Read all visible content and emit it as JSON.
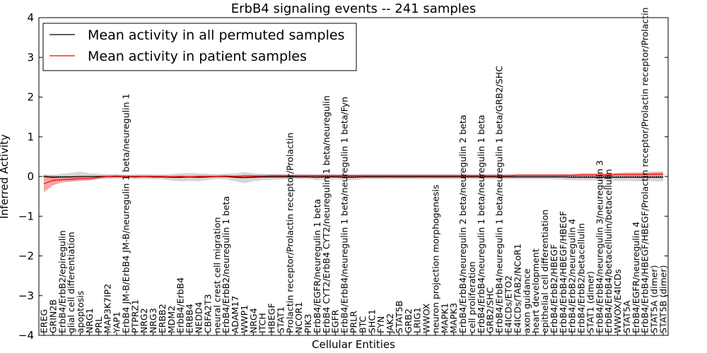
{
  "chart_data": {
    "type": "line",
    "title": "ErbB4 signaling events -- 241 samples",
    "xlabel": "Cellular Entities",
    "ylabel": "Inferred Activity",
    "ylim": [
      -4,
      4
    ],
    "yticks": [
      -4,
      -3,
      -2,
      -1,
      0,
      1,
      2,
      3,
      4
    ],
    "legend_position": "top-left",
    "categories": [
      "EREG",
      "GRIN2B",
      "ErbB4/ErbB2/epiregulin",
      "glial cell differentiation",
      "apoptosis",
      "NRG1",
      "PRL",
      "MAP3K7IP2",
      "YAP1",
      "ErbB4 JM-B/ErbB4 JM-B/neuregulin 1 beta/neuregulin 1",
      "PTPRZ1",
      "NRG2",
      "NRG3",
      "ERBB2",
      "MDM2",
      "ErbB4/ErbB4",
      "ERBB4",
      "NEDD4",
      "CBFA2T3",
      "neural crest cell migration",
      "ErbB4/ErbB2/neuregulin 1 beta",
      "ADAM17",
      "WWP1",
      "NRG4",
      "ITCH",
      "HBEGF",
      "STAT1",
      "Prolactin receptor/Prolactin receptor/Prolactin",
      "NCOR1",
      "PIK3",
      "ErbB4/EGFR/neuregulin 1 beta",
      "ErbB4 CYT2/ErbB4 CYT2/neuregulin 1 beta/neuregulin",
      "EGFR",
      "ErbB4/ErbB4/neuregulin 1 beta/neuregulin 1 beta/Fyn",
      "PRLR",
      "BTC",
      "SHC1",
      "FYN",
      "JAK2",
      "STAT5B",
      "GRB2",
      "LRIG1",
      "WWOX",
      "neuron projection morphogenesis",
      "MAPK1",
      "MAPK3",
      "ErbB4/ErbB4/neuregulin 2 beta/neuregulin 2 beta",
      "cell proliferation",
      "ErbB4/ErbB4/neuregulin 1 beta/neuregulin 1 beta",
      "GRB2/SHC",
      "ErbB4/ErbB4/neuregulin 1 beta/neuregulin 1 beta/GRB2/SHC",
      "E4ICDs/ETO2",
      "E4ICDs/TAB2/NCoR1",
      "axon guidance",
      "heart development",
      "epithelial cell differentiation",
      "ErbB4/ErbB2/HBEGF",
      "ErbB4/ErbB4/HBEGF/HBEGF",
      "ErbB4/ErbB2/neuregulin 4",
      "ErbB4/ErbB2/betacellulin",
      "STAT1 (dimer)",
      "ErbB4/ErbB4/neuregulin 3/neuregulin 3",
      "ErbB4/ErbB4/betacellulin/betacellulin",
      "WWOX/E4ICDs",
      "STAT5A",
      "ErbB4/EGFR/neuregulin 4",
      "ErbB4/ErbB4/HBEGF/HBEGF/Prolactin receptor/Prolactin receptor/Prolactin",
      "STAT5A (dimer)",
      "STAT5B (dimer)"
    ],
    "series": [
      {
        "name": "Mean activity in all permuted samples",
        "color": "#000000",
        "band_color": "#c8c8c8",
        "values": [
          0.0,
          -0.02,
          -0.01,
          -0.01,
          0.0,
          0.0,
          0.0,
          0.0,
          0.0,
          0.0,
          -0.01,
          0.0,
          -0.01,
          -0.01,
          -0.02,
          -0.02,
          -0.01,
          -0.02,
          -0.01,
          0.0,
          0.0,
          -0.02,
          -0.03,
          -0.02,
          -0.01,
          -0.01,
          -0.01,
          -0.01,
          -0.01,
          -0.01,
          -0.02,
          -0.01,
          -0.01,
          -0.02,
          -0.02,
          -0.01,
          -0.01,
          -0.01,
          -0.01,
          -0.01,
          -0.01,
          -0.01,
          -0.01,
          -0.01,
          -0.01,
          -0.01,
          -0.01,
          -0.01,
          -0.01,
          -0.01,
          -0.01,
          -0.01,
          -0.01,
          -0.01,
          -0.01,
          -0.01,
          -0.01,
          -0.01,
          -0.02,
          -0.02,
          -0.02,
          -0.02,
          -0.02,
          -0.02,
          -0.02,
          -0.02,
          -0.02,
          -0.02,
          -0.02
        ],
        "band_width": [
          0.05,
          0.06,
          0.08,
          0.1,
          0.12,
          0.08,
          0.07,
          0.06,
          0.06,
          0.05,
          0.06,
          0.06,
          0.06,
          0.06,
          0.08,
          0.1,
          0.1,
          0.1,
          0.08,
          0.06,
          0.07,
          0.1,
          0.14,
          0.1,
          0.08,
          0.07,
          0.07,
          0.06,
          0.06,
          0.06,
          0.07,
          0.07,
          0.06,
          0.07,
          0.07,
          0.06,
          0.06,
          0.06,
          0.06,
          0.06,
          0.06,
          0.06,
          0.06,
          0.06,
          0.06,
          0.06,
          0.06,
          0.06,
          0.06,
          0.06,
          0.06,
          0.06,
          0.06,
          0.06,
          0.06,
          0.06,
          0.06,
          0.07,
          0.07,
          0.08,
          0.08,
          0.08,
          0.08,
          0.09,
          0.09,
          0.1,
          0.1,
          0.1,
          0.1
        ]
      },
      {
        "name": "Mean activity in patient samples",
        "color": "#ff0000",
        "band_color": "#f08080",
        "values": [
          -0.18,
          -0.1,
          -0.08,
          -0.07,
          -0.05,
          -0.05,
          -0.02,
          0.0,
          0.01,
          0.0,
          0.0,
          0.0,
          0.0,
          0.0,
          -0.01,
          0.0,
          -0.01,
          0.0,
          0.0,
          0.0,
          0.01,
          0.0,
          0.01,
          0.01,
          0.01,
          0.02,
          0.02,
          0.02,
          0.02,
          0.02,
          0.02,
          0.02,
          0.02,
          0.02,
          0.02,
          0.02,
          0.02,
          0.02,
          0.02,
          0.02,
          0.02,
          0.02,
          0.02,
          0.02,
          0.02,
          0.02,
          0.02,
          0.02,
          0.02,
          0.02,
          0.02,
          0.02,
          0.03,
          0.03,
          0.03,
          0.03,
          0.03,
          0.03,
          0.03,
          0.04,
          0.04,
          0.04,
          0.04,
          0.05,
          0.05,
          0.05,
          0.05,
          0.06,
          0.06
        ],
        "band_width": [
          0.22,
          0.12,
          0.07,
          0.06,
          0.05,
          0.05,
          0.04,
          0.03,
          0.03,
          0.03,
          0.03,
          0.03,
          0.03,
          0.03,
          0.03,
          0.03,
          0.03,
          0.03,
          0.03,
          0.03,
          0.03,
          0.03,
          0.03,
          0.03,
          0.03,
          0.03,
          0.03,
          0.03,
          0.03,
          0.03,
          0.03,
          0.03,
          0.03,
          0.03,
          0.03,
          0.03,
          0.03,
          0.03,
          0.03,
          0.03,
          0.03,
          0.03,
          0.03,
          0.03,
          0.03,
          0.03,
          0.03,
          0.03,
          0.03,
          0.03,
          0.03,
          0.03,
          0.03,
          0.03,
          0.03,
          0.03,
          0.03,
          0.03,
          0.03,
          0.04,
          0.04,
          0.04,
          0.04,
          0.04,
          0.05,
          0.05,
          0.05,
          0.06,
          0.06
        ]
      }
    ]
  }
}
